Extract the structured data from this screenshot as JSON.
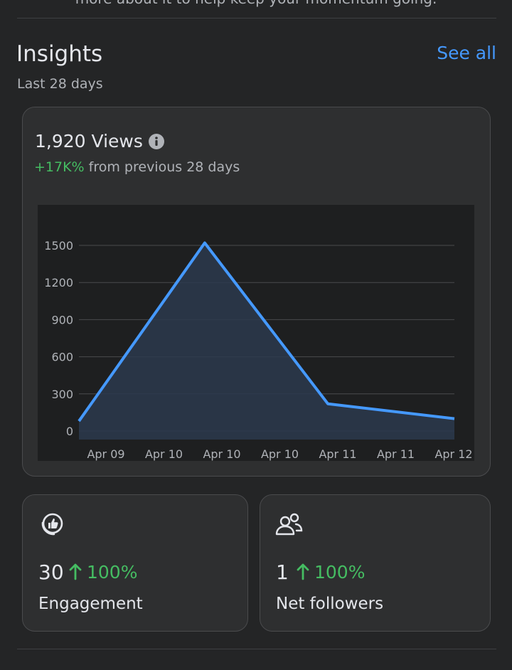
{
  "header": {
    "cutoff_text": "more about it to help keep your momentum going.",
    "title": "Insights",
    "see_all": "See all",
    "subtitle": "Last 28 days"
  },
  "views": {
    "count_label": "1,920 Views",
    "info_icon": "info-circle-icon",
    "change": "+17K%",
    "change_suffix": " from previous 28 days"
  },
  "chart_data": {
    "type": "area",
    "x": [
      "Apr 09",
      "Apr 10",
      "Apr 10",
      "Apr 10",
      "Apr 11",
      "Apr 11",
      "Apr 12"
    ],
    "y_ticks": [
      0,
      300,
      600,
      900,
      1200,
      1500
    ],
    "ylim": [
      0,
      1500
    ],
    "points": [
      {
        "x_pos": 0.0,
        "y": 80
      },
      {
        "x_pos": 0.335,
        "y": 1520
      },
      {
        "x_pos": 0.663,
        "y": 220
      },
      {
        "x_pos": 1.0,
        "y": 100
      }
    ],
    "colors": {
      "line": "#4599ff",
      "fill": "#2b3a4d",
      "grid": "#4a4b4d",
      "tick": "#b0b3b8",
      "bg": "#1e1f20"
    }
  },
  "engagement": {
    "icon": "thumbs-up-badge-icon",
    "value": "30",
    "change": "100%",
    "label": "Engagement"
  },
  "followers": {
    "icon": "people-icon",
    "value": "1",
    "change": "100%",
    "label": "Net followers"
  },
  "colors": {
    "accent": "#4599ff",
    "positive": "#45bd62"
  }
}
